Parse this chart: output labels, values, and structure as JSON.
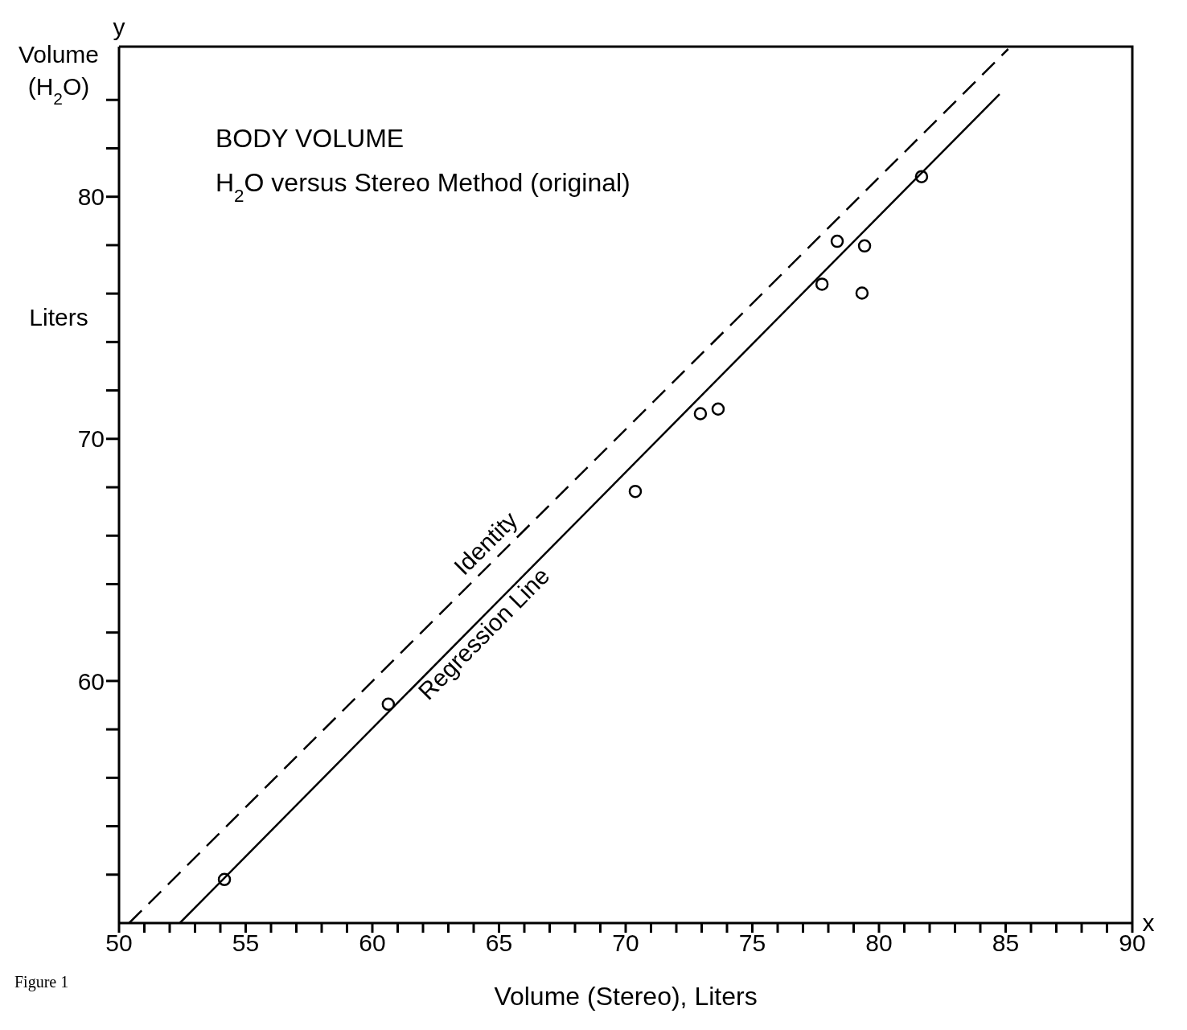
{
  "chart_data": {
    "type": "scatter",
    "title": "BODY VOLUME",
    "subtitle": "H$_{2}$O versus Stereo Method (original)",
    "xlabel": "Volume (Stereo), Liters",
    "ylabel": "Volume (H$_{2}$O)",
    "annotations": [
      "Liters",
      "y",
      "x",
      "Figure 1"
    ],
    "xlim": [
      50,
      90
    ],
    "ylim": [
      50,
      86.2
    ],
    "xticks": [
      50,
      {
        "value": 51,
        "label": null
      },
      {
        "value": 52,
        "label": null
      },
      {
        "value": 53,
        "label": null
      },
      {
        "value": 54,
        "label": null
      },
      55,
      {
        "value": 56,
        "label": null
      },
      {
        "value": 57,
        "label": null
      },
      {
        "value": 58,
        "label": null
      },
      {
        "value": 59,
        "label": null
      },
      60,
      {
        "value": 61,
        "label": null
      },
      {
        "value": 62,
        "label": null
      },
      {
        "value": 63,
        "label": null
      },
      {
        "value": 64,
        "label": null
      },
      65,
      {
        "value": 66,
        "label": null
      },
      {
        "value": 67,
        "label": null
      },
      {
        "value": 68,
        "label": null
      },
      {
        "value": 69,
        "label": null
      },
      70,
      {
        "value": 71,
        "label": null
      },
      {
        "value": 72,
        "label": null
      },
      {
        "value": 73,
        "label": null
      },
      {
        "value": 74,
        "label": null
      },
      75,
      {
        "value": 76,
        "label": null
      },
      {
        "value": 77,
        "label": null
      },
      {
        "value": 78,
        "label": null
      },
      {
        "value": 79,
        "label": null
      },
      80,
      {
        "value": 81,
        "label": null
      },
      {
        "value": 82,
        "label": null
      },
      {
        "value": 83,
        "label": null
      },
      {
        "value": 84,
        "label": null
      },
      85,
      {
        "value": 86,
        "label": null
      },
      {
        "value": 87,
        "label": null
      },
      {
        "value": 88,
        "label": null
      },
      {
        "value": 89,
        "label": null
      },
      90
    ],
    "yticks": [
      {
        "value": 52,
        "label": null
      },
      {
        "value": 54,
        "label": null
      },
      {
        "value": 56,
        "label": null
      },
      {
        "value": 58,
        "label": null
      },
      60,
      {
        "value": 62,
        "label": null
      },
      {
        "value": 64,
        "label": null
      },
      {
        "value": 66,
        "label": null
      },
      {
        "value": 68,
        "label": null
      },
      70,
      {
        "value": 72,
        "label": null
      },
      {
        "value": 74,
        "label": null
      },
      {
        "value": 76,
        "label": null
      },
      {
        "value": 78,
        "label": null
      },
      80,
      {
        "value": 82,
        "label": null
      },
      {
        "value": 84,
        "label": null
      }
    ],
    "grid": false,
    "legend": false,
    "marker": "circle",
    "series": [
      {
        "color": "#000000",
        "x": [
          54.16,
          60.63,
          70.38,
          72.95,
          73.65,
          77.75,
          78.35,
          79.43,
          79.33,
          81.68
        ],
        "values": [
          51.8,
          59.04,
          67.83,
          71.04,
          71.23,
          76.39,
          78.16,
          77.97,
          76.02,
          80.83
        ]
      },
      {
        "type": "line",
        "name": "Identity",
        "color": "#000000",
        "line_style": "dashed",
        "marker": "none",
        "x": [
          50.4,
          85.1
        ],
        "values": [
          50,
          86.1
        ]
      },
      {
        "type": "line",
        "name": "Regression Line",
        "color": "#000000",
        "line_style": "solid",
        "marker": "none",
        "x": [
          52.4,
          84.76
        ],
        "values": [
          50,
          84.24
        ]
      }
    ]
  }
}
